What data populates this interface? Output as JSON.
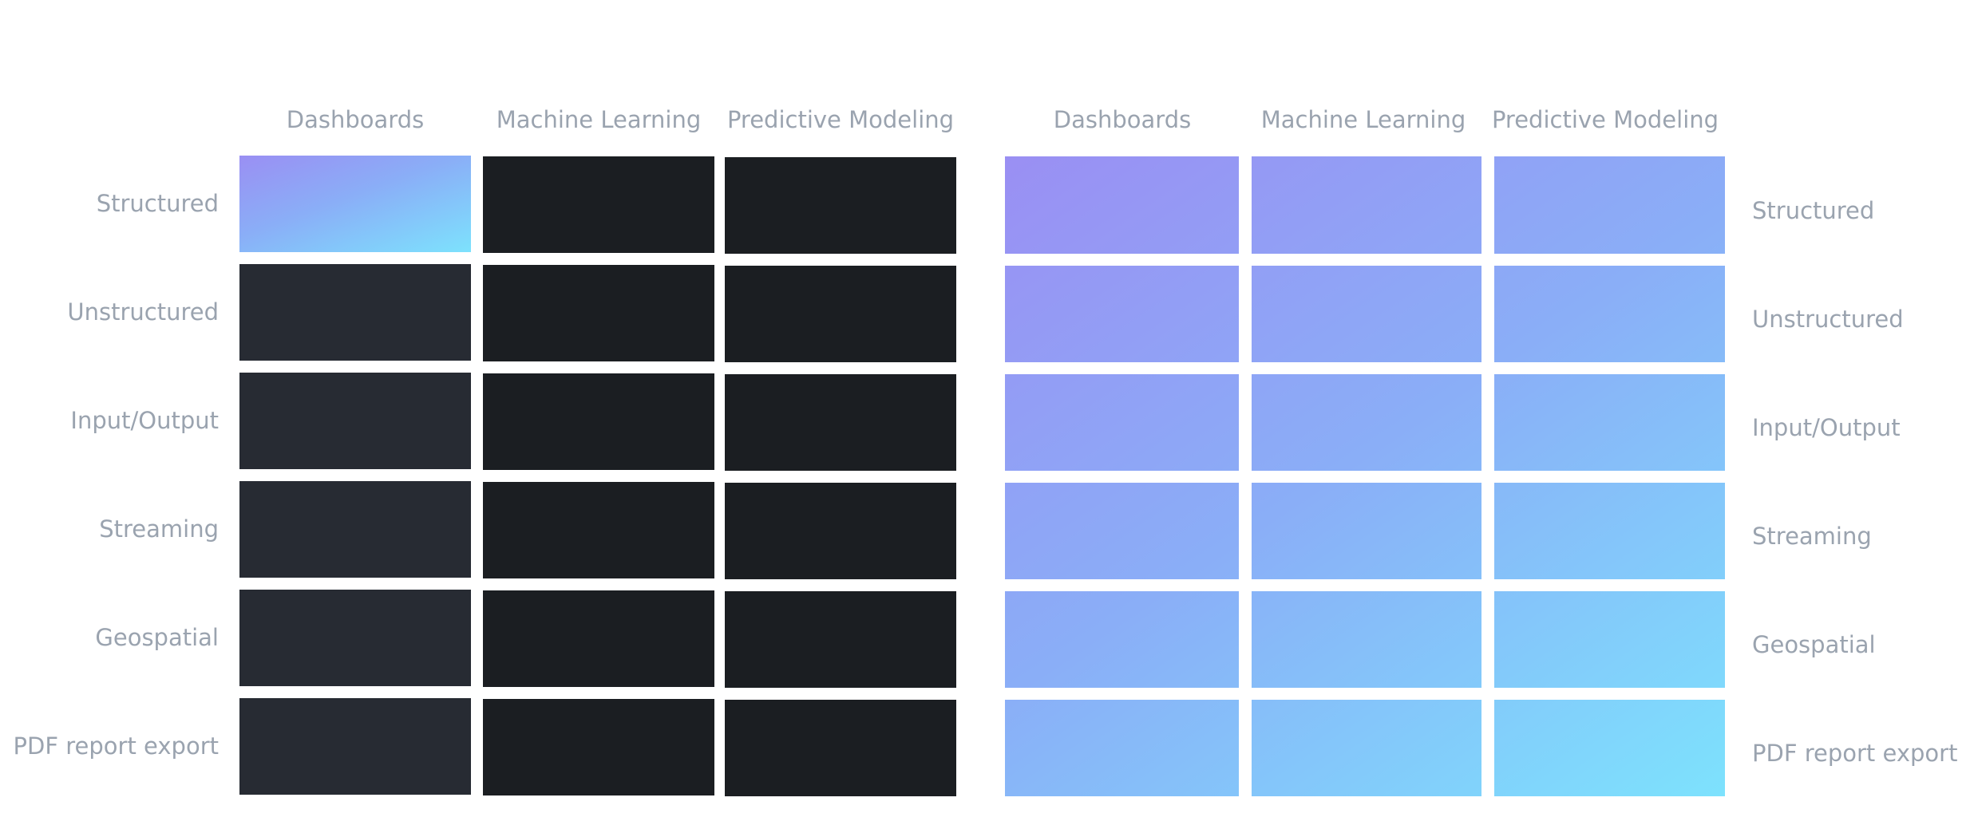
{
  "colors": {
    "label": "#9aa3af",
    "dark_slate": "#272b33",
    "dark": "#1b1e22",
    "highlight_gradient": [
      "#9a8ff3",
      "#7de2fd"
    ],
    "grid_gradient": [
      "#9a8ff3",
      "#8aaef7",
      "#7de2fd"
    ]
  },
  "left_grid": {
    "columns": [
      "Dashboards",
      "Machine Learning",
      "Predictive Modeling"
    ],
    "rows": [
      "Structured",
      "Unstructured",
      "Input/Output",
      "Streaming",
      "Geospatial",
      "PDF report export"
    ],
    "highlighted": {
      "row": "Structured",
      "column": "Dashboards"
    }
  },
  "right_grid": {
    "columns": [
      "Dashboards",
      "Machine Learning",
      "Predictive Modeling"
    ],
    "rows": [
      "Structured",
      "Unstructured",
      "Input/Output",
      "Streaming",
      "Geospatial",
      "PDF report export"
    ]
  }
}
